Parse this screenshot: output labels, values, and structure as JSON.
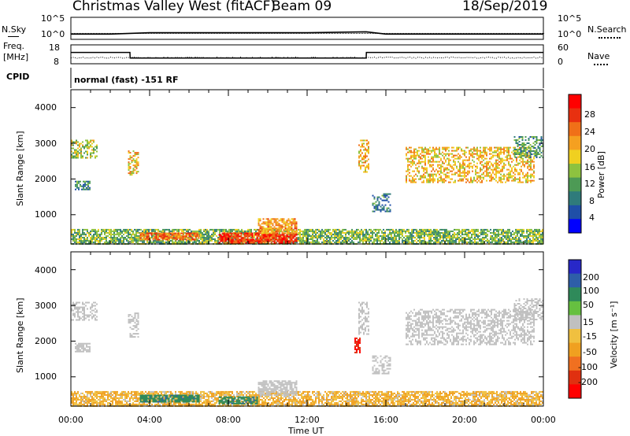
{
  "header": {
    "title": "Christmas Valley West (fitACF)",
    "beam": "Beam 09",
    "date": "18/Sep/2019"
  },
  "top_panels": {
    "nsky_label": "N.Sky",
    "nsearch_label": "N.Search",
    "noise_ticks": [
      "10^5",
      "10^0"
    ],
    "freq_label_1": "Freq.",
    "freq_label_2": "[MHz]",
    "freq_ticks": [
      "18",
      "8"
    ],
    "nave_label": "Nave",
    "nave_ticks": [
      "60",
      "0"
    ],
    "cpid_label": "CPID",
    "cpid_text": "normal (fast) -151 RF"
  },
  "power_panel": {
    "ylabel": "Slant Range [km]",
    "yticks": [
      "4000",
      "3000",
      "2000",
      "1000"
    ],
    "colorbar_label": "Power [dB]",
    "colorbar_ticks": [
      "28",
      "24",
      "20",
      "16",
      "12",
      "8",
      "4"
    ],
    "colors": [
      "#0000ff",
      "#1f4fa8",
      "#2f7b7b",
      "#4d9a55",
      "#8ec23f",
      "#f0d020",
      "#f5a020",
      "#f07018",
      "#e83010",
      "#ff0000"
    ]
  },
  "velocity_panel": {
    "ylabel": "Slant Range [km]",
    "yticks": [
      "4000",
      "3000",
      "2000",
      "1000"
    ],
    "colorbar_label": "Velocity [m s⁻¹]",
    "colorbar_ticks": [
      "200",
      "100",
      "50",
      "15",
      "-15",
      "-50",
      "-100",
      "-200"
    ],
    "colors": [
      "#2828c8",
      "#2e5ea8",
      "#2f8a5a",
      "#66c040",
      "#c0c0c0",
      "#f0c040",
      "#f0a020",
      "#f07020",
      "#e03010",
      "#ff0000"
    ]
  },
  "x_axis": {
    "ticks": [
      "00:00",
      "04:00",
      "08:00",
      "12:00",
      "16:00",
      "20:00",
      "00:00"
    ],
    "label": "Time UT"
  },
  "chart_data": [
    {
      "type": "line",
      "name": "noise",
      "x": [
        "00:00",
        "02:00",
        "04:00",
        "08:00",
        "12:00",
        "15:00",
        "16:00",
        "20:00",
        "24:00"
      ],
      "series": [
        {
          "name": "N.Sky",
          "values": [
            1.2,
            1.2,
            1.5,
            1.5,
            1.5,
            1.7,
            1.2,
            1.2,
            1.2
          ]
        }
      ],
      "ylim": [
        "10^0",
        "10^5"
      ]
    },
    {
      "type": "line",
      "name": "frequency",
      "x": [
        "00:00",
        "03:00",
        "03:01",
        "15:00",
        "15:01",
        "24:00"
      ],
      "series": [
        {
          "name": "Freq",
          "values": [
            14,
            14,
            11,
            11,
            14,
            14
          ]
        },
        {
          "name": "Nave",
          "values": [
            5,
            5,
            5,
            5,
            5,
            5
          ]
        }
      ],
      "ylim": [
        8,
        18
      ]
    },
    {
      "type": "heatmap",
      "name": "power",
      "xlim": [
        0,
        24
      ],
      "ylim": [
        180,
        4500
      ],
      "clim": [
        0,
        30
      ],
      "regions": [
        {
          "t0": 0.0,
          "t1": 24.0,
          "r0": 200,
          "r1": 600,
          "level": 12
        },
        {
          "t0": 0.0,
          "t1": 1.3,
          "r0": 2600,
          "r1": 3100,
          "level": 14
        },
        {
          "t0": 0.2,
          "t1": 1.0,
          "r0": 1700,
          "r1": 1950,
          "level": 8
        },
        {
          "t0": 2.9,
          "t1": 3.4,
          "r0": 2100,
          "r1": 2800,
          "level": 18
        },
        {
          "t0": 3.5,
          "t1": 6.5,
          "r0": 300,
          "r1": 500,
          "level": 22
        },
        {
          "t0": 7.5,
          "t1": 11.5,
          "r0": 200,
          "r1": 500,
          "level": 26
        },
        {
          "t0": 9.5,
          "t1": 11.5,
          "r0": 500,
          "r1": 900,
          "level": 20
        },
        {
          "t0": 14.6,
          "t1": 15.1,
          "r0": 2200,
          "r1": 3100,
          "level": 18
        },
        {
          "t0": 15.3,
          "t1": 16.2,
          "r0": 1100,
          "r1": 1600,
          "level": 8
        },
        {
          "t0": 17.0,
          "t1": 23.5,
          "r0": 1900,
          "r1": 2900,
          "level": 18
        },
        {
          "t0": 22.5,
          "t1": 24.0,
          "r0": 2600,
          "r1": 3200,
          "level": 10
        }
      ]
    },
    {
      "type": "heatmap",
      "name": "velocity",
      "xlim": [
        0,
        24
      ],
      "ylim": [
        180,
        4500
      ],
      "clim": [
        -200,
        200
      ],
      "regions": [
        {
          "t0": 0.0,
          "t1": 24.0,
          "r0": 200,
          "r1": 600,
          "value": -30
        },
        {
          "t0": 0.0,
          "t1": 1.3,
          "r0": 2600,
          "r1": 3100,
          "value": 0
        },
        {
          "t0": 0.2,
          "t1": 1.0,
          "r0": 1700,
          "r1": 1950,
          "value": 0
        },
        {
          "t0": 2.9,
          "t1": 3.4,
          "r0": 2100,
          "r1": 2800,
          "value": 0
        },
        {
          "t0": 3.5,
          "t1": 6.5,
          "r0": 300,
          "r1": 500,
          "value": 60
        },
        {
          "t0": 7.5,
          "t1": 9.5,
          "r0": 250,
          "r1": 450,
          "value": 60
        },
        {
          "t0": 9.5,
          "t1": 11.5,
          "r0": 500,
          "r1": 900,
          "value": 0
        },
        {
          "t0": 14.4,
          "t1": 14.7,
          "r0": 1700,
          "r1": 2100,
          "value": -200
        },
        {
          "t0": 14.6,
          "t1": 15.1,
          "r0": 2200,
          "r1": 3100,
          "value": 0
        },
        {
          "t0": 15.3,
          "t1": 16.2,
          "r0": 1100,
          "r1": 1600,
          "value": 0
        },
        {
          "t0": 17.0,
          "t1": 23.5,
          "r0": 1900,
          "r1": 2900,
          "value": 0
        },
        {
          "t0": 22.5,
          "t1": 24.0,
          "r0": 2600,
          "r1": 3200,
          "value": 0
        }
      ]
    }
  ]
}
